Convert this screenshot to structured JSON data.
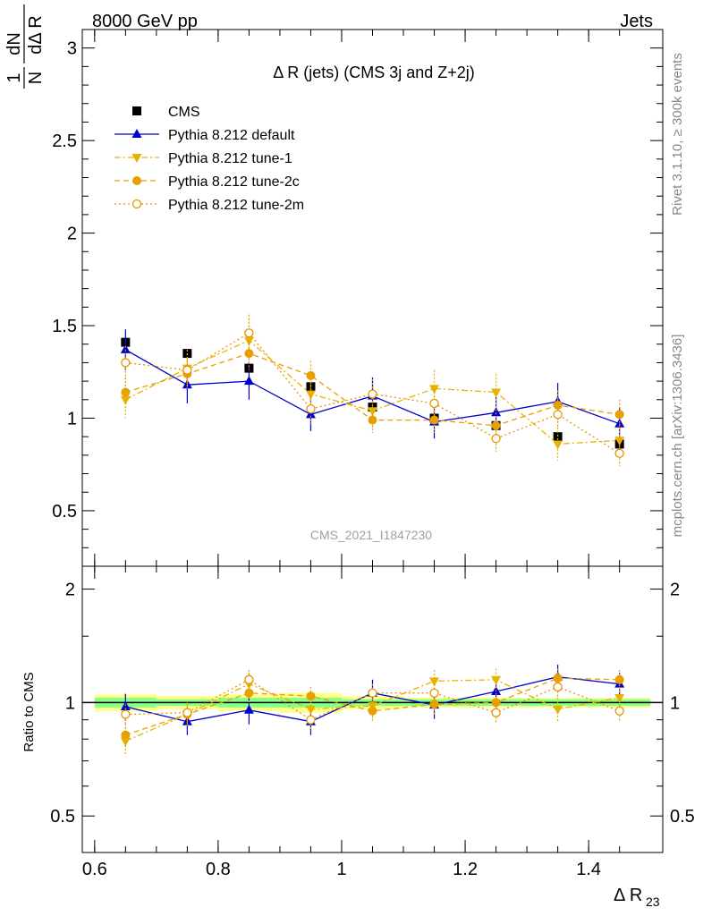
{
  "header": {
    "energy": "8000 GeV pp",
    "category": "Jets",
    "side_rivet": "Rivet 3.1.10, ≥ 300k events",
    "side_mcplots": "mcplots.cern.ch [arXiv:1306.3436]",
    "analysis_id": "CMS_2021_I1847230"
  },
  "chart_data": [
    {
      "type": "line",
      "panel": "main",
      "title": "Δ R (jets) (CMS 3j and Z+2j)",
      "ylabel": "1/N dN/dΔ R23",
      "ylabel_num": "1",
      "ylabel_den": "N",
      "ylabel_dnum": "dN",
      "ylabel_dden": "dΔ R",
      "ylabel_sub": "23",
      "xlim": [
        0.58,
        1.52
      ],
      "ylim": [
        0.2,
        3.1
      ],
      "yticks": [
        0.5,
        1,
        1.5,
        2,
        2.5,
        3
      ],
      "ytick_labels": [
        "0.5",
        "1",
        "1.5",
        "2",
        "2.5",
        "3"
      ],
      "x": [
        0.65,
        0.75,
        0.85,
        0.95,
        1.05,
        1.15,
        1.25,
        1.35,
        1.45
      ],
      "series": [
        {
          "name": "CMS",
          "color": "#000000",
          "marker": "square",
          "values": [
            1.41,
            1.35,
            1.27,
            1.17,
            1.06,
            1.0,
            0.96,
            0.9,
            0.86
          ],
          "errors": [
            0.02,
            0.02,
            0.02,
            0.02,
            0.02,
            0.02,
            0.02,
            0.02,
            0.02
          ]
        },
        {
          "name": "Pythia 8.212 default",
          "color": "#0000cc",
          "marker": "triangle-up",
          "dash": "",
          "values": [
            1.37,
            1.18,
            1.2,
            1.02,
            1.12,
            0.98,
            1.03,
            1.09,
            0.97
          ],
          "errors": [
            0.11,
            0.1,
            0.1,
            0.09,
            0.1,
            0.09,
            0.09,
            0.1,
            0.09
          ]
        },
        {
          "name": "Pythia 8.212 tune-1",
          "color": "#e6b400",
          "marker": "triangle-down",
          "dash": "7 3 2 3",
          "values": [
            1.1,
            1.27,
            1.42,
            1.13,
            1.04,
            1.16,
            1.14,
            0.86,
            0.88
          ],
          "errors": [
            0.1,
            0.1,
            0.12,
            0.09,
            0.09,
            0.1,
            0.1,
            0.09,
            0.09
          ]
        },
        {
          "name": "Pythia 8.212 tune-2c",
          "color": "#e6a000",
          "marker": "circle",
          "dash": "6 4",
          "values": [
            1.14,
            1.24,
            1.35,
            1.23,
            0.99,
            0.99,
            0.96,
            1.07,
            1.02
          ],
          "errors": [
            0.08,
            0.08,
            0.09,
            0.08,
            0.07,
            0.07,
            0.07,
            0.08,
            0.08
          ]
        },
        {
          "name": "Pythia 8.212 tune-2m",
          "color": "#e69600",
          "marker": "circle-open",
          "dash": "2 3",
          "values": [
            1.3,
            1.26,
            1.46,
            1.05,
            1.13,
            1.08,
            0.89,
            1.02,
            0.81
          ],
          "errors": [
            0.09,
            0.09,
            0.1,
            0.08,
            0.08,
            0.08,
            0.07,
            0.08,
            0.07
          ]
        }
      ]
    },
    {
      "type": "line",
      "panel": "ratio",
      "ylabel": "Ratio to CMS",
      "xlabel": "Δ R",
      "xlabel_sub": "23",
      "xlim": [
        0.58,
        1.52
      ],
      "ylim": [
        0.4,
        2.3
      ],
      "yticks": [
        0.5,
        1,
        2
      ],
      "ytick_labels": [
        "0.5",
        "1",
        "2"
      ],
      "xticks": [
        0.6,
        0.8,
        1,
        1.2,
        1.4
      ],
      "xtick_labels": [
        "0.6",
        "0.8",
        "1",
        "1.2",
        "1.4"
      ],
      "x": [
        0.65,
        0.75,
        0.85,
        0.95,
        1.05,
        1.15,
        1.25,
        1.35,
        1.45
      ],
      "bands": {
        "stat_color": "#88ff88",
        "syst_color": "#ffff88",
        "stat_half": [
          0.03,
          0.02,
          0.03,
          0.03,
          0.02,
          0.02,
          0.02,
          0.02,
          0.02
        ],
        "syst_half": [
          0.05,
          0.04,
          0.05,
          0.06,
          0.04,
          0.03,
          0.03,
          0.03,
          0.03
        ]
      },
      "series": [
        {
          "name": "Pythia 8.212 default",
          "color": "#0000cc",
          "marker": "triangle-up",
          "dash": "",
          "values": [
            0.975,
            0.89,
            0.955,
            0.89,
            1.06,
            0.985,
            1.07,
            1.17,
            1.12
          ],
          "errors": [
            0.08,
            0.07,
            0.08,
            0.07,
            0.09,
            0.08,
            0.08,
            0.09,
            0.08
          ]
        },
        {
          "name": "Pythia 8.212 tune-1",
          "color": "#e6b400",
          "marker": "triangle-down",
          "dash": "7 3 2 3",
          "values": [
            0.79,
            0.93,
            1.12,
            0.96,
            0.98,
            1.14,
            1.15,
            0.96,
            1.03
          ],
          "errors": [
            0.07,
            0.07,
            0.08,
            0.07,
            0.07,
            0.08,
            0.08,
            0.07,
            0.07
          ]
        },
        {
          "name": "Pythia 8.212 tune-2c",
          "color": "#e6a000",
          "marker": "circle",
          "dash": "6 4",
          "values": [
            0.82,
            0.93,
            1.06,
            1.04,
            0.95,
            0.99,
            1.0,
            1.16,
            1.15
          ],
          "errors": [
            0.06,
            0.06,
            0.07,
            0.06,
            0.06,
            0.06,
            0.06,
            0.07,
            0.07
          ]
        },
        {
          "name": "Pythia 8.212 tune-2m",
          "color": "#e69600",
          "marker": "circle-open",
          "dash": "2 3",
          "values": [
            0.93,
            0.94,
            1.15,
            0.9,
            1.06,
            1.06,
            0.94,
            1.1,
            0.95
          ],
          "errors": [
            0.06,
            0.06,
            0.07,
            0.06,
            0.06,
            0.06,
            0.06,
            0.07,
            0.06
          ]
        }
      ]
    }
  ]
}
